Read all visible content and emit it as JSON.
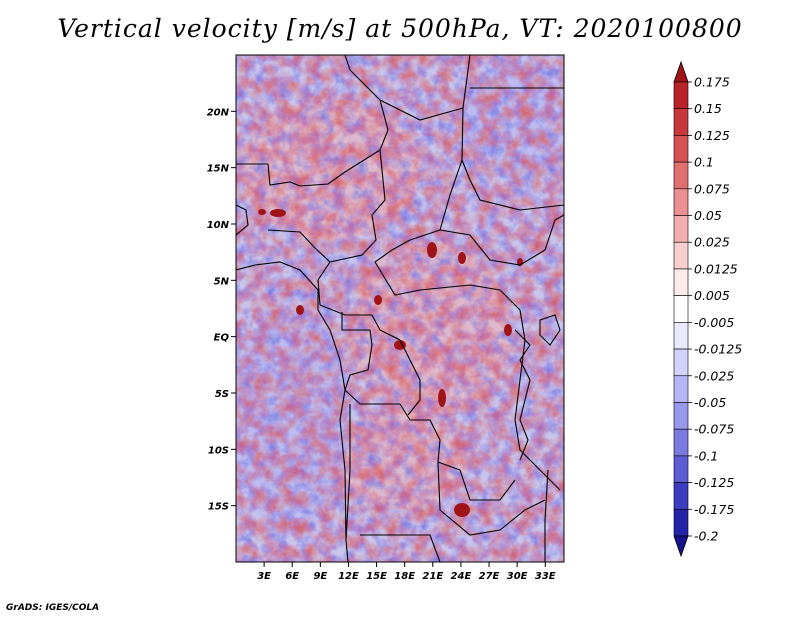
{
  "title": "Vertical velocity [m/s] at 500hPa, VT: 2020100800",
  "credit": "GrADS: IGES/COLA",
  "map": {
    "lon_range": [
      0,
      35
    ],
    "lat_range": [
      -20,
      25
    ],
    "lon_labels": [
      "3E",
      "6E",
      "9E",
      "12E",
      "15E",
      "18E",
      "21E",
      "24E",
      "27E",
      "30E",
      "33E"
    ],
    "lat_labels": [
      "20N",
      "15N",
      "10N",
      "5N",
      "EQ",
      "5S",
      "10S",
      "15S"
    ]
  },
  "colorbar": {
    "labels": [
      "0.175",
      "0.15",
      "0.125",
      "0.1",
      "0.075",
      "0.05",
      "0.025",
      "0.0125",
      "0.005",
      "-0.005",
      "-0.0125",
      "-0.025",
      "-0.05",
      "-0.075",
      "-0.1",
      "-0.125",
      "-0.175",
      "-0.2"
    ],
    "colors": [
      "#a01418",
      "#b82428",
      "#c8383a",
      "#d65252",
      "#e07070",
      "#ea9090",
      "#f2b0b0",
      "#f8cfcf",
      "#fdeaea",
      "#ffffff",
      "#eaeaff",
      "#d2d2fc",
      "#b6b6f6",
      "#9898ec",
      "#7a7ae0",
      "#5c5cd4",
      "#3c3cc0",
      "#2424a8",
      "#16148c"
    ]
  }
}
